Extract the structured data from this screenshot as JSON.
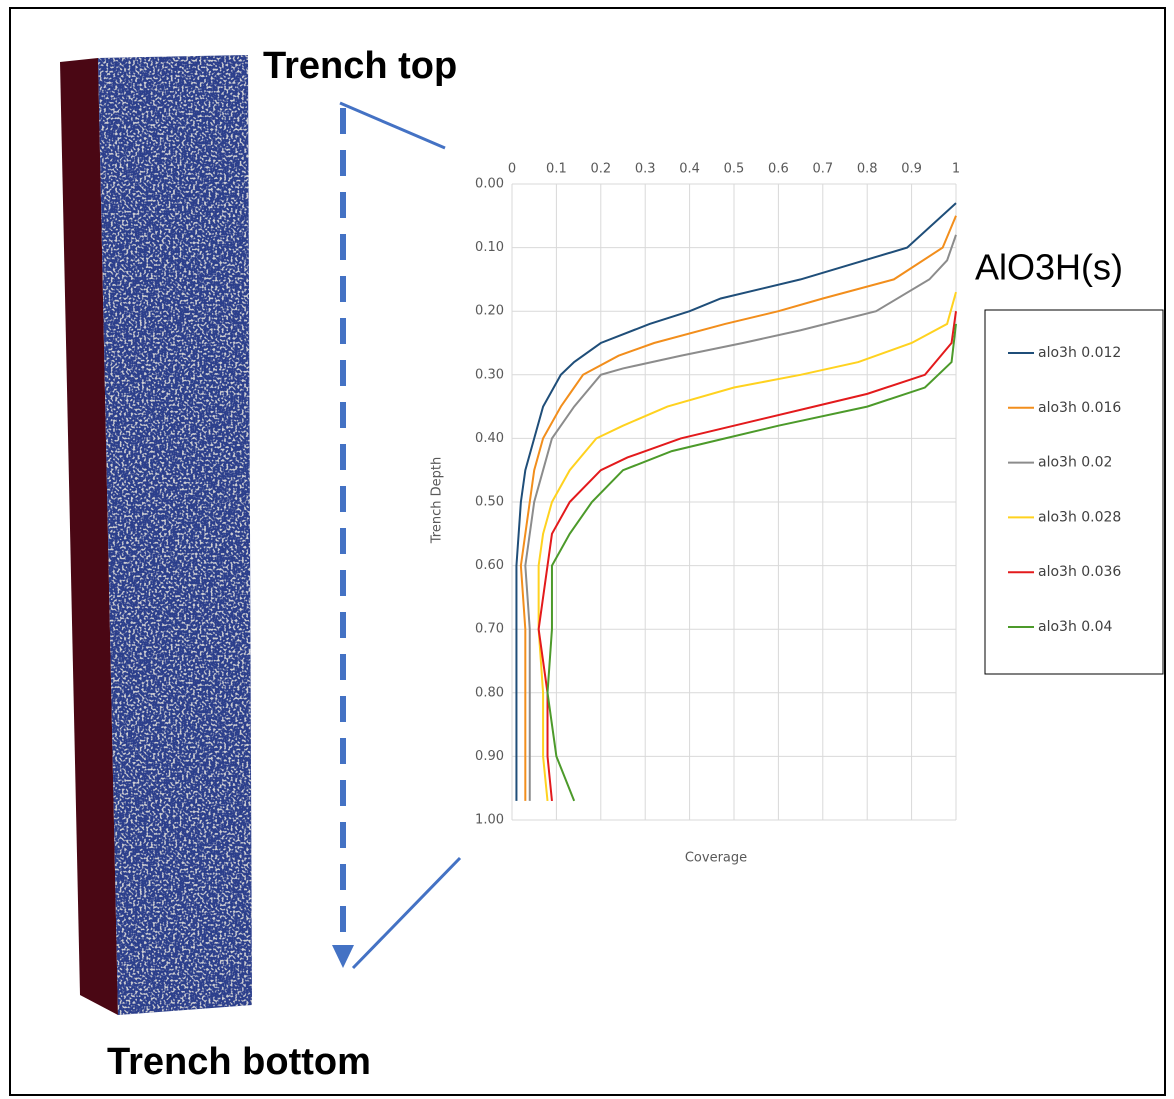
{
  "chart_data": {
    "type": "line",
    "annotations": [
      "Trench top",
      "Trench bottom"
    ],
    "legend_title": "AlO3H(s)",
    "xlabel": "Coverage",
    "ylabel": "Trench Depth",
    "xlim": [
      0,
      1
    ],
    "xticks": [
      0,
      0.1,
      0.2,
      0.3,
      0.4,
      0.5,
      0.6,
      0.7,
      0.8,
      0.9,
      1
    ],
    "ylim": [
      0,
      1
    ],
    "y_inverted": true,
    "yticks": [
      {
        "value": 0,
        "label": "0.00"
      },
      {
        "value": 0.1,
        "label": "0.10"
      },
      {
        "value": 0.2,
        "label": "0.20"
      },
      {
        "value": 0.3,
        "label": "0.30"
      },
      {
        "value": 0.4,
        "label": "0.40"
      },
      {
        "value": 0.5,
        "label": "0.50"
      },
      {
        "value": 0.6,
        "label": "0.60"
      },
      {
        "value": 0.7,
        "label": "0.70"
      },
      {
        "value": 0.8,
        "label": "0.80"
      },
      {
        "value": 0.9,
        "label": "0.90"
      },
      {
        "value": 1,
        "label": "1.00"
      }
    ],
    "grid": true,
    "legend": "right",
    "series": [
      {
        "name": "alo3h 0.012",
        "color": "#1f4e79",
        "x": [
          1,
          0.89,
          0.65,
          0.47,
          0.4,
          0.31,
          0.2,
          0.14,
          0.11,
          0.07,
          0.05,
          0.03,
          0.02,
          0.01,
          0.01,
          0.01,
          0.01,
          0.01
        ],
        "values": [
          0.03,
          0.1,
          0.15,
          0.18,
          0.2,
          0.22,
          0.25,
          0.28,
          0.3,
          0.35,
          0.4,
          0.45,
          0.5,
          0.6,
          0.7,
          0.8,
          0.9,
          0.97
        ]
      },
      {
        "name": "alo3h 0.016",
        "color": "#f28e1c",
        "x": [
          1,
          0.97,
          0.86,
          0.7,
          0.6,
          0.48,
          0.32,
          0.24,
          0.16,
          0.13,
          0.11,
          0.07,
          0.05,
          0.04,
          0.02,
          0.03,
          0.03,
          0.03,
          0.03
        ],
        "values": [
          0.05,
          0.1,
          0.15,
          0.18,
          0.2,
          0.22,
          0.25,
          0.27,
          0.3,
          0.33,
          0.35,
          0.4,
          0.45,
          0.5,
          0.6,
          0.7,
          0.8,
          0.9,
          0.97
        ]
      },
      {
        "name": "alo3h 0.02",
        "color": "#8c8c8c",
        "x": [
          1,
          0.98,
          0.94,
          0.82,
          0.65,
          0.52,
          0.38,
          0.25,
          0.2,
          0.14,
          0.09,
          0.07,
          0.05,
          0.03,
          0.04,
          0.04,
          0.04,
          0.04
        ],
        "values": [
          0.08,
          0.12,
          0.15,
          0.2,
          0.23,
          0.25,
          0.27,
          0.29,
          0.3,
          0.35,
          0.4,
          0.45,
          0.5,
          0.6,
          0.7,
          0.8,
          0.9,
          0.97
        ]
      },
      {
        "name": "alo3h 0.028",
        "color": "#ffd21f",
        "x": [
          1,
          0.98,
          0.9,
          0.78,
          0.65,
          0.5,
          0.35,
          0.25,
          0.19,
          0.13,
          0.09,
          0.07,
          0.06,
          0.06,
          0.07,
          0.07,
          0.08
        ],
        "values": [
          0.17,
          0.22,
          0.25,
          0.28,
          0.3,
          0.32,
          0.35,
          0.38,
          0.4,
          0.45,
          0.5,
          0.55,
          0.6,
          0.7,
          0.8,
          0.9,
          0.97
        ]
      },
      {
        "name": "alo3h 0.036",
        "color": "#e31a1c",
        "x": [
          1,
          0.99,
          0.93,
          0.8,
          0.68,
          0.5,
          0.38,
          0.26,
          0.2,
          0.13,
          0.09,
          0.08,
          0.06,
          0.08,
          0.08,
          0.09
        ],
        "values": [
          0.2,
          0.25,
          0.3,
          0.33,
          0.35,
          0.38,
          0.4,
          0.43,
          0.45,
          0.5,
          0.55,
          0.6,
          0.7,
          0.8,
          0.9,
          0.97
        ]
      },
      {
        "name": "alo3h 0.04",
        "color": "#4c9a2a",
        "x": [
          1,
          0.99,
          0.93,
          0.8,
          0.6,
          0.48,
          0.36,
          0.25,
          0.18,
          0.13,
          0.09,
          0.09,
          0.08,
          0.1,
          0.14
        ],
        "values": [
          0.22,
          0.28,
          0.32,
          0.35,
          0.38,
          0.4,
          0.42,
          0.45,
          0.5,
          0.55,
          0.6,
          0.7,
          0.8,
          0.9,
          0.97
        ]
      }
    ]
  }
}
